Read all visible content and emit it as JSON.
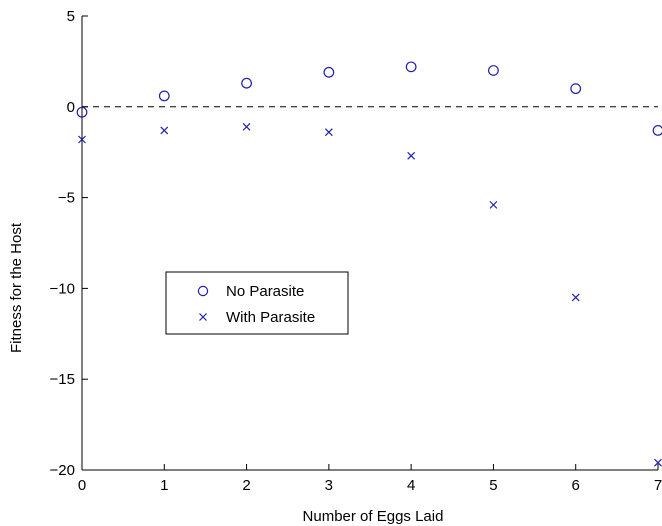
{
  "chart_data": {
    "type": "scatter",
    "xlabel": "Number of Eggs Laid",
    "ylabel": "Fitness for the Host",
    "xlim": [
      0,
      7
    ],
    "ylim": [
      -20,
      5
    ],
    "xticks": [
      0,
      1,
      2,
      3,
      4,
      5,
      6,
      7
    ],
    "yticks": [
      5,
      0,
      -5,
      -10,
      -15,
      -20
    ],
    "xtick_labels": [
      "0",
      "1",
      "2",
      "3",
      "4",
      "5",
      "6",
      "7"
    ],
    "ytick_labels": [
      "5",
      "0",
      "−5",
      "−10",
      "−15",
      "−20"
    ],
    "reference_line": {
      "y": 0,
      "style": "dashed"
    },
    "grid": false,
    "legend_position": "left-center",
    "series": [
      {
        "name": "No Parasite",
        "marker": "circle",
        "color": "#1f1fb4",
        "x": [
          0,
          1,
          2,
          3,
          4,
          5,
          6,
          7
        ],
        "y": [
          -0.3,
          0.6,
          1.3,
          1.9,
          2.2,
          2.0,
          1.0,
          -1.3
        ]
      },
      {
        "name": "With Parasite",
        "marker": "x",
        "color": "#1f1fb4",
        "x": [
          0,
          1,
          2,
          3,
          4,
          5,
          6,
          7
        ],
        "y": [
          -1.8,
          -1.3,
          -1.1,
          -1.4,
          -2.7,
          -5.4,
          -10.5,
          -19.6
        ]
      }
    ]
  }
}
